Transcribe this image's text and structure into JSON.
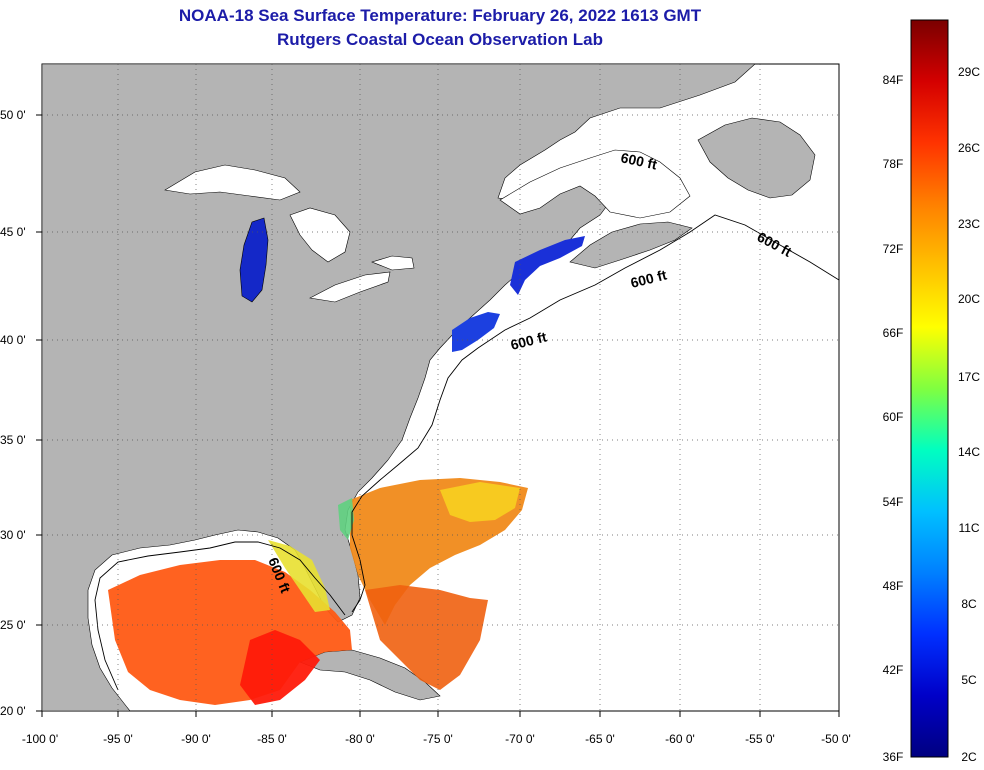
{
  "title_line1": "NOAA-18 Sea Surface Temperature:  February 26, 2022 1613 GMT",
  "title_line2": "Rutgers Coastal Ocean Observation Lab",
  "map": {
    "lat_labels": [
      "50 0'",
      "45 0'",
      "40 0'",
      "35 0'",
      "30 0'",
      "25 0'",
      "20 0'"
    ],
    "lon_labels": [
      "-100 0'",
      "-95 0'",
      "-90 0'",
      "-85 0'",
      "-80 0'",
      "-75 0'",
      "-70 0'",
      "-65 0'",
      "-60 0'",
      "-55 0'",
      "-50 0'"
    ],
    "contour_label": "600 ft",
    "colors": {
      "land": "#b4b4b4",
      "ocean_no_data": "#ffffff",
      "grid": "#555555"
    }
  },
  "colorbar": {
    "fahrenheit_labels": [
      "84F",
      "78F",
      "72F",
      "66F",
      "60F",
      "54F",
      "48F",
      "42F",
      "36F"
    ],
    "celsius_labels": [
      "29C",
      "26C",
      "23C",
      "20C",
      "17C",
      "14C",
      "11C",
      "8C",
      "5C",
      "2C"
    ],
    "gradient_colors": [
      "#7a0000",
      "#d40000",
      "#ff3300",
      "#ff8000",
      "#ffc000",
      "#ffff00",
      "#80ff40",
      "#00ffc0",
      "#00c0ff",
      "#0080ff",
      "#0030ff",
      "#0000c8",
      "#000080"
    ]
  }
}
